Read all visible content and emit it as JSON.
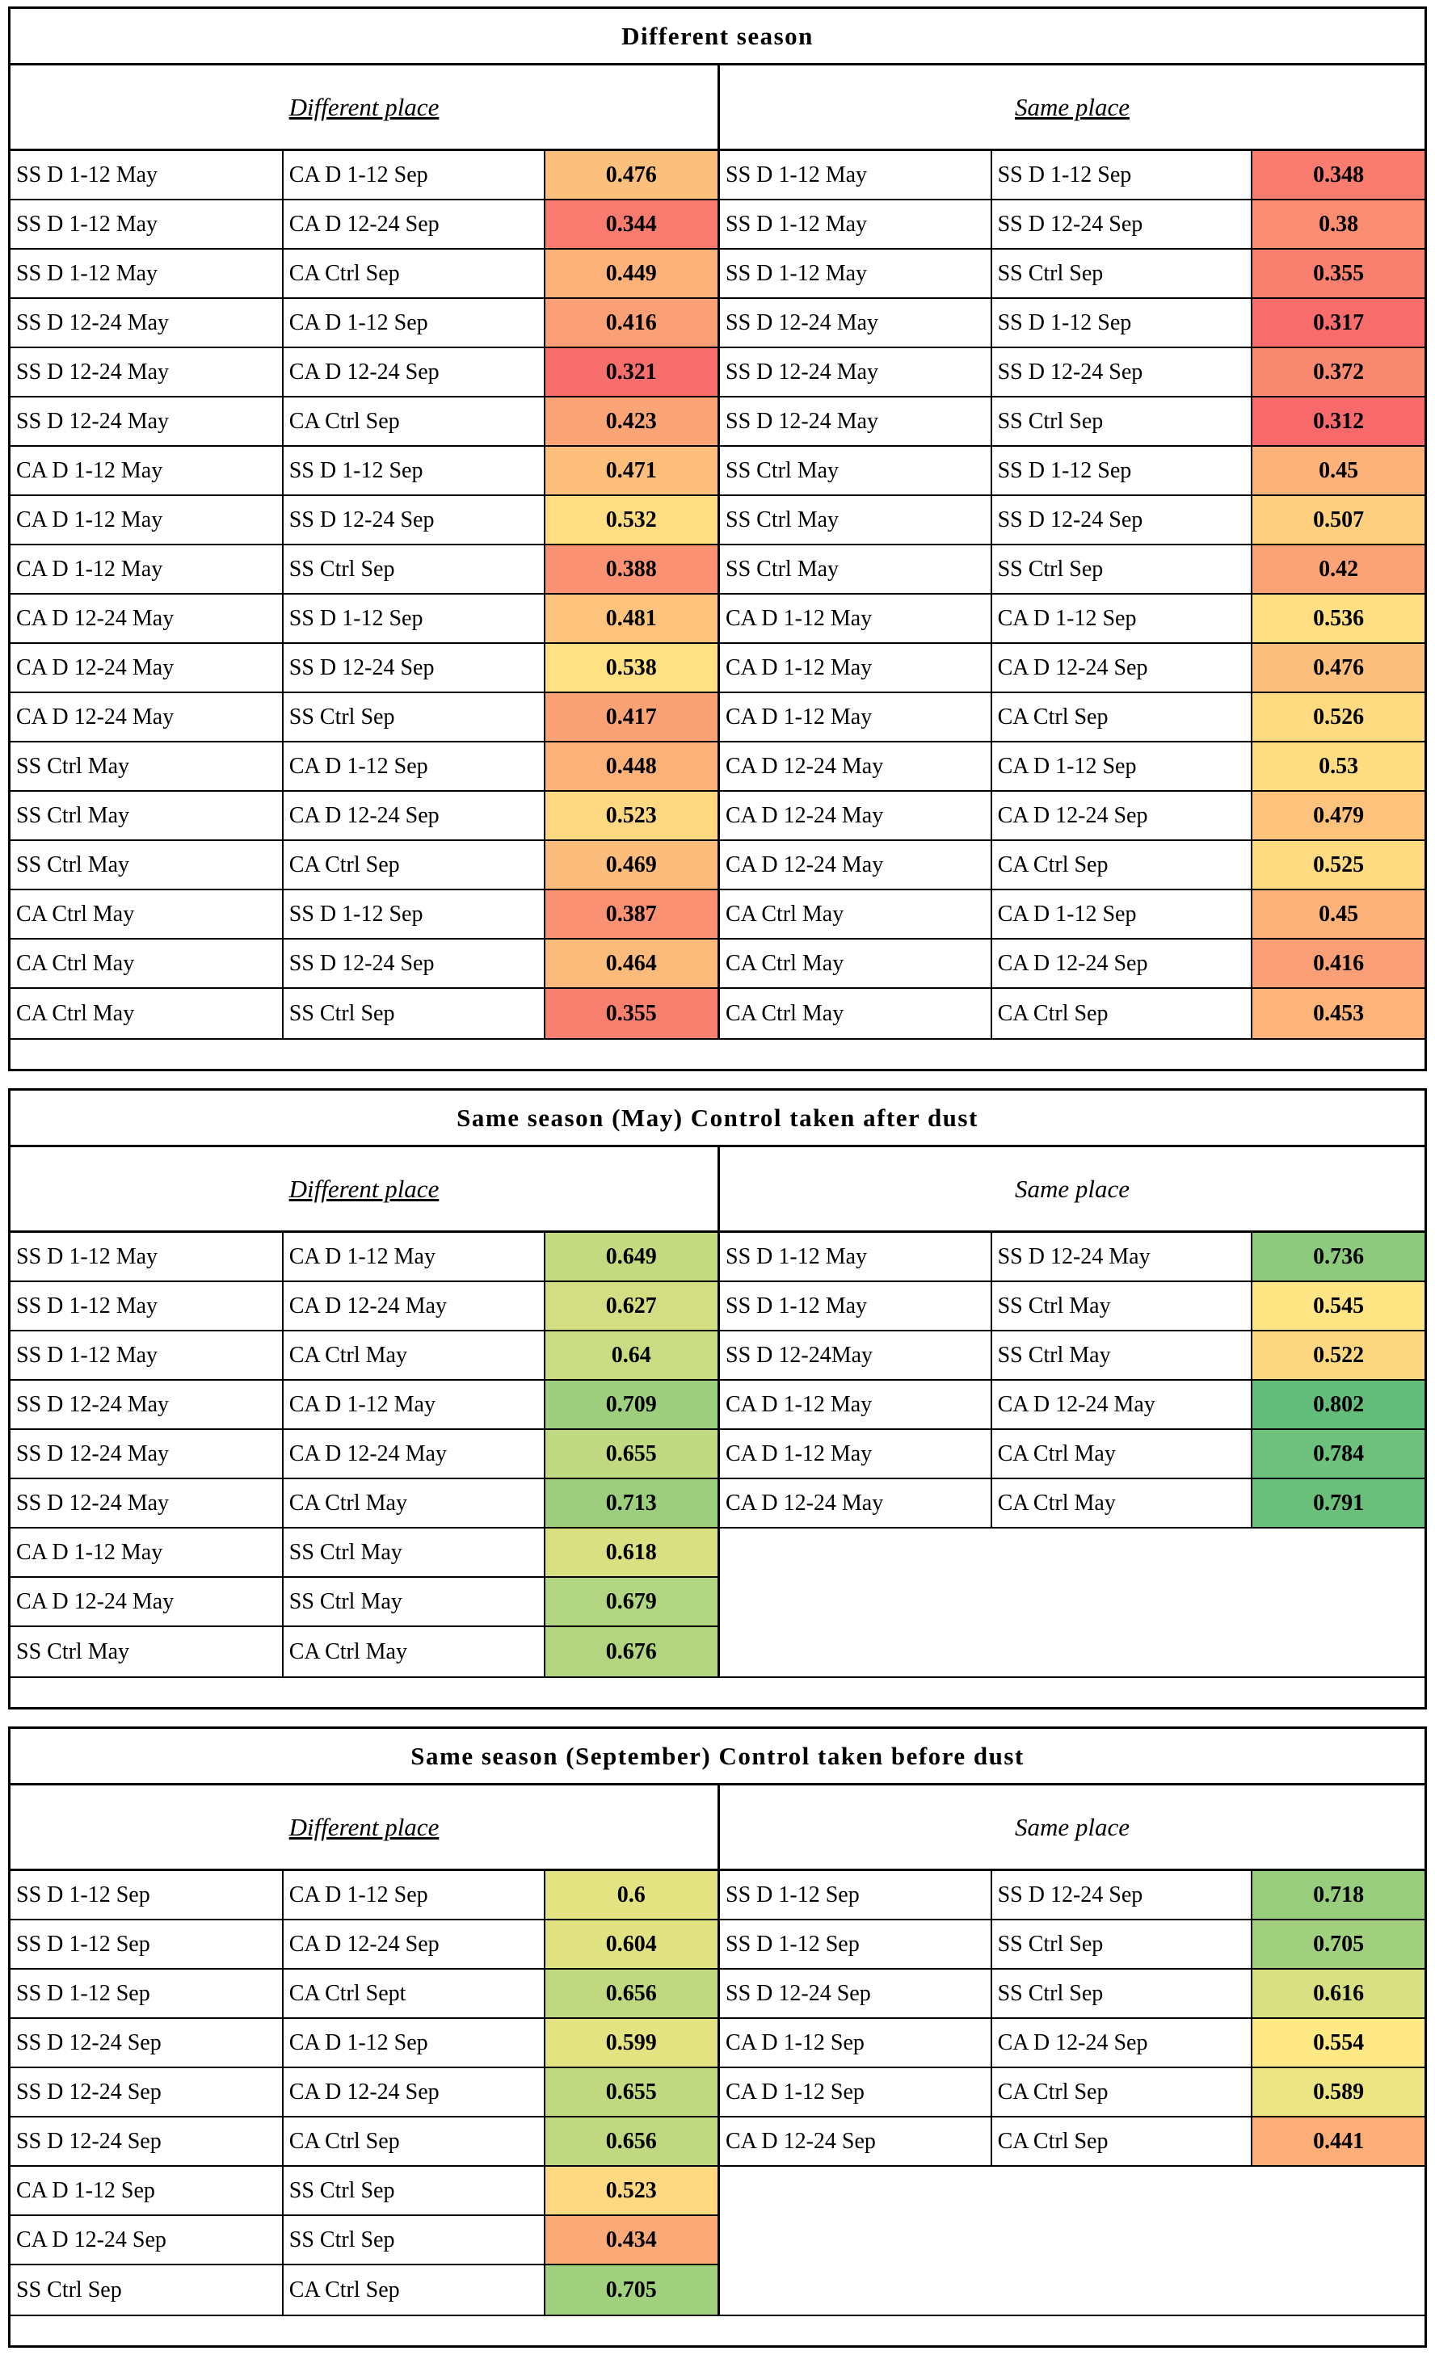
{
  "chart_data": {
    "type": "table",
    "subtype": "heatmap-similarity-table",
    "color_scale": {
      "min_value": 0.312,
      "mid_value": 0.557,
      "max_value": 0.802,
      "min_color": "#F8696B",
      "mid_color": "#FFEB84",
      "max_color": "#63BE7B"
    },
    "sections": [
      {
        "title": "Different season",
        "left_header": "Different place",
        "right_header": "Same place",
        "left_rows": [
          {
            "a": "SS D 1-12 May",
            "b": "CA D 1-12 Sep",
            "value": "0.476"
          },
          {
            "a": "SS D 1-12 May",
            "b": "CA D 12-24 Sep",
            "value": "0.344"
          },
          {
            "a": "SS D 1-12 May",
            "b": "CA Ctrl Sep",
            "value": "0.449"
          },
          {
            "a": "SS D 12-24 May",
            "b": "CA D 1-12 Sep",
            "value": "0.416"
          },
          {
            "a": "SS D 12-24 May",
            "b": "CA D 12-24 Sep",
            "value": "0.321"
          },
          {
            "a": "SS D 12-24 May",
            "b": "CA Ctrl Sep",
            "value": "0.423"
          },
          {
            "a": "CA D 1-12 May",
            "b": "SS D 1-12 Sep",
            "value": "0.471"
          },
          {
            "a": "CA D 1-12 May",
            "b": "SS D 12-24 Sep",
            "value": "0.532"
          },
          {
            "a": "CA D 1-12 May",
            "b": "SS Ctrl Sep",
            "value": "0.388"
          },
          {
            "a": "CA D 12-24 May",
            "b": "SS D 1-12 Sep",
            "value": "0.481"
          },
          {
            "a": "CA D 12-24 May",
            "b": "SS D 12-24 Sep",
            "value": "0.538"
          },
          {
            "a": "CA D 12-24 May",
            "b": "SS Ctrl Sep",
            "value": "0.417"
          },
          {
            "a": "SS Ctrl May",
            "b": "CA D 1-12 Sep",
            "value": "0.448"
          },
          {
            "a": "SS Ctrl May",
            "b": "CA D 12-24 Sep",
            "value": "0.523"
          },
          {
            "a": "SS Ctrl May",
            "b": "CA Ctrl Sep",
            "value": "0.469"
          },
          {
            "a": "CA Ctrl May",
            "b": "SS D 1-12 Sep",
            "value": "0.387"
          },
          {
            "a": "CA Ctrl May",
            "b": "SS D 12-24 Sep",
            "value": "0.464"
          },
          {
            "a": "CA Ctrl May",
            "b": "SS Ctrl Sep",
            "value": "0.355"
          }
        ],
        "right_rows": [
          {
            "a": "SS D 1-12 May",
            "b": "SS D 1-12 Sep",
            "value": "0.348"
          },
          {
            "a": "SS D 1-12 May",
            "b": "SS D 12-24 Sep",
            "value": "0.38"
          },
          {
            "a": "SS D 1-12 May",
            "b": "SS Ctrl Sep",
            "value": "0.355"
          },
          {
            "a": "SS D 12-24 May",
            "b": "SS D 1-12 Sep",
            "value": "0.317"
          },
          {
            "a": "SS D 12-24 May",
            "b": "SS D 12-24 Sep",
            "value": "0.372"
          },
          {
            "a": "SS D 12-24 May",
            "b": "SS Ctrl Sep",
            "value": "0.312"
          },
          {
            "a": "SS Ctrl May",
            "b": "SS D 1-12 Sep",
            "value": "0.45"
          },
          {
            "a": "SS Ctrl May",
            "b": "SS D 12-24 Sep",
            "value": "0.507"
          },
          {
            "a": "SS Ctrl May",
            "b": "SS Ctrl Sep",
            "value": "0.42"
          },
          {
            "a": "CA D 1-12 May",
            "b": "CA D 1-12 Sep",
            "value": "0.536"
          },
          {
            "a": "CA D 1-12 May",
            "b": "CA D 12-24 Sep",
            "value": "0.476"
          },
          {
            "a": "CA D 1-12 May",
            "b": "CA Ctrl Sep",
            "value": "0.526"
          },
          {
            "a": "CA D 12-24 May",
            "b": "CA D 1-12 Sep",
            "value": "0.53"
          },
          {
            "a": "CA D 12-24 May",
            "b": "CA D 12-24 Sep",
            "value": "0.479"
          },
          {
            "a": "CA D 12-24 May",
            "b": "CA Ctrl Sep",
            "value": "0.525"
          },
          {
            "a": "CA Ctrl May",
            "b": "CA D 1-12 Sep",
            "value": "0.45"
          },
          {
            "a": "CA Ctrl May",
            "b": "CA D 12-24 Sep",
            "value": "0.416"
          },
          {
            "a": "CA Ctrl May",
            "b": "CA Ctrl Sep",
            "value": "0.453"
          }
        ]
      },
      {
        "title": "Same season (May) Control taken after dust",
        "left_header": "Different place",
        "right_header": "Same place",
        "left_rows": [
          {
            "a": "SS D 1-12 May",
            "b": "CA D 1-12 May",
            "value": "0.649"
          },
          {
            "a": "SS D 1-12 May",
            "b": "CA D 12-24 May",
            "value": "0.627"
          },
          {
            "a": "SS D 1-12 May",
            "b": "CA Ctrl May",
            "value": "0.64"
          },
          {
            "a": "SS D 12-24 May",
            "b": "CA D 1-12 May",
            "value": "0.709"
          },
          {
            "a": "SS D 12-24 May",
            "b": "CA D 12-24 May",
            "value": "0.655"
          },
          {
            "a": "SS D 12-24 May",
            "b": "CA Ctrl May",
            "value": "0.713"
          },
          {
            "a": "CA D 1-12 May",
            "b": "SS Ctrl May",
            "value": "0.618"
          },
          {
            "a": "CA D 12-24 May",
            "b": "SS Ctrl May",
            "value": "0.679"
          },
          {
            "a": "SS Ctrl May",
            "b": "CA Ctrl May",
            "value": "0.676"
          }
        ],
        "right_rows": [
          {
            "a": "SS D 1-12 May",
            "b": "SS D 12-24 May",
            "value": "0.736"
          },
          {
            "a": "SS D 1-12 May",
            "b": "SS Ctrl May",
            "value": "0.545"
          },
          {
            "a": "SS D 12-24May",
            "b": "SS Ctrl May",
            "value": "0.522"
          },
          {
            "a": "CA D 1-12 May",
            "b": "CA D 12-24 May",
            "value": "0.802"
          },
          {
            "a": "CA D 1-12 May",
            "b": "CA Ctrl May",
            "value": "0.784"
          },
          {
            "a": "CA D 12-24 May",
            "b": "CA Ctrl May",
            "value": "0.791"
          }
        ]
      },
      {
        "title": "Same season (September) Control taken before dust",
        "left_header": "Different place",
        "right_header": "Same place",
        "left_rows": [
          {
            "a": "SS D 1-12 Sep",
            "b": "CA D 1-12 Sep",
            "value": "0.6"
          },
          {
            "a": "SS D 1-12 Sep",
            "b": "CA D 12-24 Sep",
            "value": "0.604"
          },
          {
            "a": "SS D 1-12 Sep",
            "b": "CA Ctrl Sept",
            "value": "0.656"
          },
          {
            "a": "SS D 12-24 Sep",
            "b": "CA D 1-12 Sep",
            "value": "0.599"
          },
          {
            "a": "SS D 12-24 Sep",
            "b": "CA D 12-24 Sep",
            "value": "0.655"
          },
          {
            "a": "SS D 12-24 Sep",
            "b": "CA Ctrl Sep",
            "value": "0.656"
          },
          {
            "a": "CA D 1-12 Sep",
            "b": "SS Ctrl Sep",
            "value": "0.523"
          },
          {
            "a": "CA D 12-24 Sep",
            "b": "SS Ctrl Sep",
            "value": "0.434"
          },
          {
            "a": "SS Ctrl Sep",
            "b": "CA Ctrl Sep",
            "value": "0.705"
          }
        ],
        "right_rows": [
          {
            "a": "SS D 1-12 Sep",
            "b": "SS D 12-24 Sep",
            "value": "0.718"
          },
          {
            "a": "SS D 1-12 Sep",
            "b": "SS Ctrl Sep",
            "value": "0.705"
          },
          {
            "a": "SS D 12-24 Sep",
            "b": "SS Ctrl Sep",
            "value": "0.616"
          },
          {
            "a": "CA D 1-12 Sep",
            "b": "CA D 12-24 Sep",
            "value": "0.554"
          },
          {
            "a": "CA D 1-12 Sep",
            "b": "CA Ctrl Sep",
            "value": "0.589"
          },
          {
            "a": "CA D 12-24 Sep",
            "b": "CA Ctrl Sep",
            "value": "0.441"
          }
        ]
      }
    ]
  }
}
